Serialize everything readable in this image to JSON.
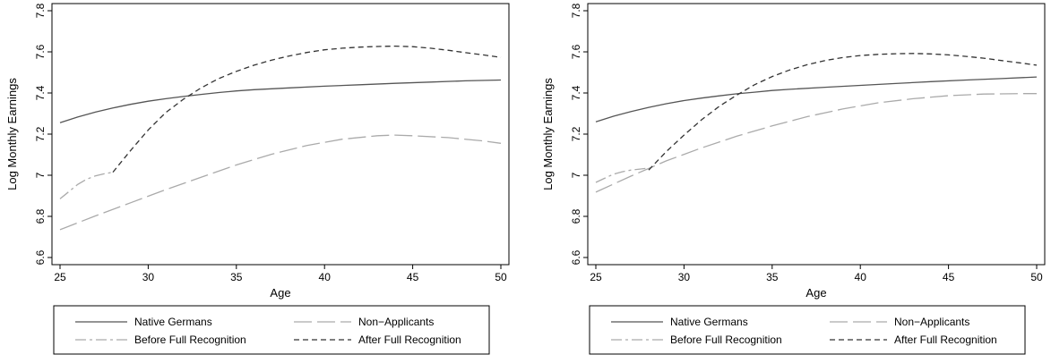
{
  "chart_data": [
    {
      "type": "line",
      "xlabel": "Age",
      "ylabel": "Log Monthly Earnings",
      "xlim": [
        25,
        50
      ],
      "ylim": [
        6.6,
        7.8
      ],
      "xticks": [
        "25",
        "30",
        "35",
        "40",
        "45",
        "50"
      ],
      "yticks": [
        "6.6",
        "6.8",
        "7",
        "7.2",
        "7.4",
        "7.6",
        "7.8"
      ],
      "grid": false,
      "legend_position": "bottom",
      "series": [
        {
          "name": "Native Germans",
          "style": "solid",
          "color": "#555555",
          "x": [
            25,
            26,
            27,
            28,
            29,
            30,
            31,
            32,
            33,
            34,
            35,
            36,
            38,
            40,
            42,
            44,
            46,
            48,
            50
          ],
          "y": [
            7.255,
            7.283,
            7.307,
            7.327,
            7.345,
            7.36,
            7.372,
            7.383,
            7.393,
            7.402,
            7.41,
            7.416,
            7.425,
            7.433,
            7.44,
            7.447,
            7.453,
            7.459,
            7.463
          ]
        },
        {
          "name": "Non−Applicants",
          "style": "longdash",
          "color": "#aaaaaa",
          "x": [
            25,
            27,
            29,
            31,
            33,
            35,
            37,
            39,
            41,
            43,
            44,
            45,
            47,
            49,
            50
          ],
          "y": [
            6.735,
            6.802,
            6.866,
            6.93,
            6.99,
            7.05,
            7.102,
            7.145,
            7.175,
            7.192,
            7.195,
            7.192,
            7.183,
            7.167,
            7.155
          ]
        },
        {
          "name": "Before Full Recognition",
          "style": "dashdot",
          "color": "#aaaaaa",
          "x": [
            25,
            25.5,
            26,
            26.5,
            27,
            27.5,
            28
          ],
          "y": [
            6.885,
            6.92,
            6.955,
            6.98,
            6.997,
            7.007,
            7.015
          ]
        },
        {
          "name": "After Full Recognition",
          "style": "shortdash",
          "color": "#333333",
          "x": [
            28,
            29,
            30,
            31,
            32,
            33,
            34,
            35,
            36,
            37,
            38,
            39,
            40,
            41,
            42,
            43,
            44,
            45,
            46,
            47,
            48,
            49,
            50
          ],
          "y": [
            7.015,
            7.12,
            7.22,
            7.305,
            7.37,
            7.425,
            7.47,
            7.505,
            7.535,
            7.56,
            7.58,
            7.597,
            7.61,
            7.618,
            7.623,
            7.626,
            7.628,
            7.625,
            7.618,
            7.608,
            7.596,
            7.585,
            7.573
          ]
        }
      ]
    },
    {
      "type": "line",
      "xlabel": "Age",
      "ylabel": "Log Monthly Earnings",
      "xlim": [
        25,
        50
      ],
      "ylim": [
        6.6,
        7.8
      ],
      "xticks": [
        "25",
        "30",
        "35",
        "40",
        "45",
        "50"
      ],
      "yticks": [
        "6.6",
        "6.8",
        "7",
        "7.2",
        "7.4",
        "7.6",
        "7.8"
      ],
      "grid": false,
      "legend_position": "bottom",
      "series": [
        {
          "name": "Native Germans",
          "style": "solid",
          "color": "#555555",
          "x": [
            25,
            26,
            27,
            28,
            29,
            30,
            31,
            32,
            33,
            34,
            35,
            36,
            38,
            40,
            42,
            44,
            46,
            48,
            50
          ],
          "y": [
            7.26,
            7.287,
            7.31,
            7.33,
            7.348,
            7.363,
            7.375,
            7.386,
            7.396,
            7.404,
            7.412,
            7.418,
            7.428,
            7.437,
            7.446,
            7.455,
            7.463,
            7.47,
            7.478
          ]
        },
        {
          "name": "Non−Applicants",
          "style": "longdash",
          "color": "#aaaaaa",
          "x": [
            25,
            27,
            29,
            31,
            33,
            35,
            37,
            39,
            41,
            43,
            45,
            47,
            49,
            50
          ],
          "y": [
            6.918,
            6.996,
            7.07,
            7.133,
            7.19,
            7.24,
            7.285,
            7.322,
            7.352,
            7.372,
            7.387,
            7.395,
            7.397,
            7.397
          ]
        },
        {
          "name": "Before Full Recognition",
          "style": "dashdot",
          "color": "#aaaaaa",
          "x": [
            25,
            25.5,
            26,
            26.5,
            27,
            27.5,
            28
          ],
          "y": [
            6.965,
            6.985,
            7.005,
            7.017,
            7.025,
            7.03,
            7.035
          ]
        },
        {
          "name": "After Full Recognition",
          "style": "shortdash",
          "color": "#333333",
          "x": [
            28,
            29,
            30,
            31,
            32,
            33,
            34,
            35,
            36,
            37,
            38,
            39,
            40,
            41,
            42,
            43,
            44,
            45,
            46,
            47,
            48,
            49,
            50
          ],
          "y": [
            7.025,
            7.115,
            7.195,
            7.27,
            7.335,
            7.39,
            7.44,
            7.48,
            7.512,
            7.538,
            7.558,
            7.572,
            7.582,
            7.588,
            7.591,
            7.592,
            7.59,
            7.585,
            7.578,
            7.569,
            7.558,
            7.547,
            7.535
          ]
        }
      ]
    }
  ]
}
